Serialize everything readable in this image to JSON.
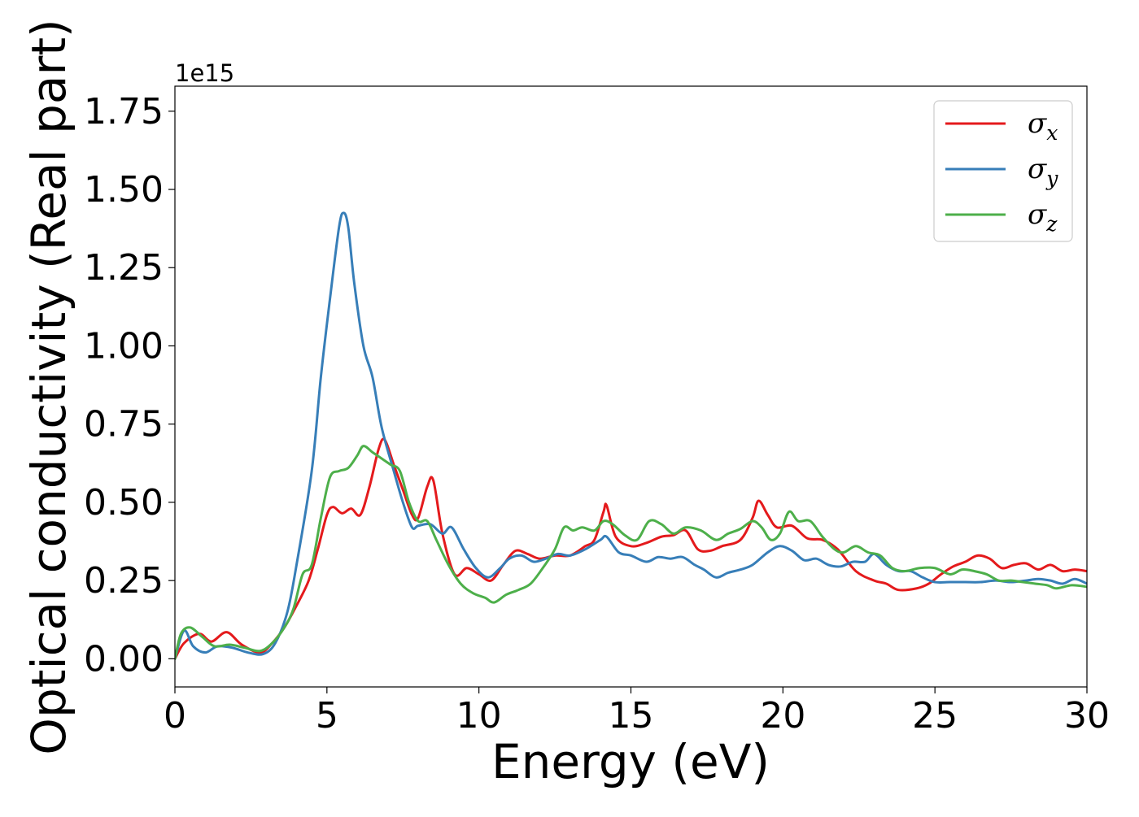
{
  "chart_data": {
    "type": "line",
    "xlabel": "Energy (eV)",
    "ylabel": "Optical conductivity (Real part)",
    "y_offset_text": "1e15",
    "y_scale_factor": 1000000000000000.0,
    "xlim": [
      0,
      30
    ],
    "ylim": [
      -0.09,
      1.83
    ],
    "x_ticks": [
      0,
      5,
      10,
      15,
      20,
      25,
      30
    ],
    "x_tick_labels": [
      "0",
      "5",
      "10",
      "15",
      "20",
      "25",
      "30"
    ],
    "y_ticks": [
      0.0,
      0.25,
      0.5,
      0.75,
      1.0,
      1.25,
      1.5,
      1.75
    ],
    "y_tick_labels": [
      "0.00",
      "0.25",
      "0.50",
      "0.75",
      "1.00",
      "1.25",
      "1.50",
      "1.75"
    ],
    "grid": false,
    "legend_position": "top-right",
    "series": [
      {
        "name": "σx",
        "symbol": "σ",
        "subscript": "x",
        "color": "#e41a1c",
        "points": [
          [
            0,
            0
          ],
          [
            0.3,
            0.05
          ],
          [
            0.8,
            0.08
          ],
          [
            1.2,
            0.055
          ],
          [
            1.7,
            0.085
          ],
          [
            2.2,
            0.045
          ],
          [
            2.8,
            0.02
          ],
          [
            3.2,
            0.05
          ],
          [
            3.6,
            0.1
          ],
          [
            4.0,
            0.17
          ],
          [
            4.4,
            0.25
          ],
          [
            4.7,
            0.35
          ],
          [
            5.0,
            0.46
          ],
          [
            5.2,
            0.485
          ],
          [
            5.5,
            0.465
          ],
          [
            5.8,
            0.48
          ],
          [
            6.1,
            0.46
          ],
          [
            6.4,
            0.55
          ],
          [
            6.7,
            0.67
          ],
          [
            6.9,
            0.7
          ],
          [
            7.2,
            0.62
          ],
          [
            7.5,
            0.54
          ],
          [
            7.8,
            0.46
          ],
          [
            8.0,
            0.45
          ],
          [
            8.3,
            0.55
          ],
          [
            8.5,
            0.57
          ],
          [
            8.8,
            0.4
          ],
          [
            9.2,
            0.27
          ],
          [
            9.6,
            0.29
          ],
          [
            10.0,
            0.27
          ],
          [
            10.4,
            0.25
          ],
          [
            10.8,
            0.3
          ],
          [
            11.2,
            0.345
          ],
          [
            11.6,
            0.335
          ],
          [
            12.0,
            0.32
          ],
          [
            12.5,
            0.33
          ],
          [
            13.0,
            0.33
          ],
          [
            13.5,
            0.36
          ],
          [
            13.8,
            0.38
          ],
          [
            14.1,
            0.47
          ],
          [
            14.2,
            0.49
          ],
          [
            14.5,
            0.39
          ],
          [
            15.0,
            0.36
          ],
          [
            15.5,
            0.37
          ],
          [
            16.0,
            0.39
          ],
          [
            16.4,
            0.395
          ],
          [
            16.8,
            0.41
          ],
          [
            17.2,
            0.35
          ],
          [
            17.6,
            0.345
          ],
          [
            18.0,
            0.36
          ],
          [
            18.6,
            0.38
          ],
          [
            19.0,
            0.45
          ],
          [
            19.2,
            0.505
          ],
          [
            19.5,
            0.46
          ],
          [
            19.8,
            0.42
          ],
          [
            20.3,
            0.425
          ],
          [
            20.8,
            0.385
          ],
          [
            21.3,
            0.38
          ],
          [
            21.8,
            0.35
          ],
          [
            22.4,
            0.28
          ],
          [
            23.0,
            0.25
          ],
          [
            23.4,
            0.24
          ],
          [
            23.8,
            0.22
          ],
          [
            24.4,
            0.225
          ],
          [
            24.8,
            0.24
          ],
          [
            25.2,
            0.27
          ],
          [
            25.6,
            0.295
          ],
          [
            26.0,
            0.31
          ],
          [
            26.4,
            0.33
          ],
          [
            26.8,
            0.32
          ],
          [
            27.2,
            0.29
          ],
          [
            27.6,
            0.3
          ],
          [
            28.0,
            0.305
          ],
          [
            28.4,
            0.285
          ],
          [
            28.8,
            0.3
          ],
          [
            29.2,
            0.28
          ],
          [
            29.6,
            0.285
          ],
          [
            30.0,
            0.28
          ]
        ]
      },
      {
        "name": "σy",
        "symbol": "σ",
        "subscript": "y",
        "color": "#377eb8",
        "points": [
          [
            0,
            0
          ],
          [
            0.3,
            0.09
          ],
          [
            0.6,
            0.04
          ],
          [
            1.0,
            0.02
          ],
          [
            1.4,
            0.04
          ],
          [
            1.9,
            0.035
          ],
          [
            2.4,
            0.02
          ],
          [
            2.9,
            0.015
          ],
          [
            3.3,
            0.05
          ],
          [
            3.7,
            0.15
          ],
          [
            4.0,
            0.3
          ],
          [
            4.5,
            0.6
          ],
          [
            4.8,
            0.9
          ],
          [
            5.1,
            1.15
          ],
          [
            5.4,
            1.38
          ],
          [
            5.55,
            1.425
          ],
          [
            5.7,
            1.38
          ],
          [
            5.9,
            1.2
          ],
          [
            6.2,
            1.0
          ],
          [
            6.5,
            0.9
          ],
          [
            6.8,
            0.74
          ],
          [
            7.2,
            0.6
          ],
          [
            7.5,
            0.5
          ],
          [
            7.8,
            0.42
          ],
          [
            8.0,
            0.425
          ],
          [
            8.4,
            0.43
          ],
          [
            8.8,
            0.4
          ],
          [
            9.1,
            0.42
          ],
          [
            9.5,
            0.35
          ],
          [
            9.9,
            0.29
          ],
          [
            10.3,
            0.26
          ],
          [
            10.7,
            0.29
          ],
          [
            11.0,
            0.32
          ],
          [
            11.4,
            0.33
          ],
          [
            11.8,
            0.31
          ],
          [
            12.2,
            0.32
          ],
          [
            12.6,
            0.335
          ],
          [
            13.0,
            0.33
          ],
          [
            13.5,
            0.35
          ],
          [
            14.0,
            0.38
          ],
          [
            14.2,
            0.39
          ],
          [
            14.6,
            0.34
          ],
          [
            15.0,
            0.33
          ],
          [
            15.5,
            0.31
          ],
          [
            15.9,
            0.325
          ],
          [
            16.3,
            0.32
          ],
          [
            16.7,
            0.325
          ],
          [
            17.1,
            0.3
          ],
          [
            17.4,
            0.285
          ],
          [
            17.8,
            0.26
          ],
          [
            18.2,
            0.275
          ],
          [
            18.6,
            0.285
          ],
          [
            19.0,
            0.3
          ],
          [
            19.5,
            0.34
          ],
          [
            19.9,
            0.36
          ],
          [
            20.3,
            0.345
          ],
          [
            20.7,
            0.315
          ],
          [
            21.1,
            0.32
          ],
          [
            21.5,
            0.3
          ],
          [
            21.9,
            0.295
          ],
          [
            22.3,
            0.31
          ],
          [
            22.7,
            0.31
          ],
          [
            23.0,
            0.335
          ],
          [
            23.4,
            0.3
          ],
          [
            23.8,
            0.28
          ],
          [
            24.2,
            0.28
          ],
          [
            24.6,
            0.26
          ],
          [
            25.0,
            0.245
          ],
          [
            25.5,
            0.245
          ],
          [
            26.0,
            0.245
          ],
          [
            26.5,
            0.245
          ],
          [
            27.0,
            0.25
          ],
          [
            27.5,
            0.245
          ],
          [
            28.0,
            0.25
          ],
          [
            28.4,
            0.255
          ],
          [
            28.8,
            0.25
          ],
          [
            29.2,
            0.24
          ],
          [
            29.6,
            0.255
          ],
          [
            30.0,
            0.24
          ]
        ]
      },
      {
        "name": "σz",
        "symbol": "σ",
        "subscript": "z",
        "color": "#4daf4a",
        "points": [
          [
            0,
            0
          ],
          [
            0.2,
            0.08
          ],
          [
            0.5,
            0.1
          ],
          [
            0.9,
            0.07
          ],
          [
            1.3,
            0.04
          ],
          [
            1.8,
            0.045
          ],
          [
            2.3,
            0.035
          ],
          [
            2.8,
            0.025
          ],
          [
            3.2,
            0.05
          ],
          [
            3.6,
            0.1
          ],
          [
            3.9,
            0.16
          ],
          [
            4.2,
            0.27
          ],
          [
            4.5,
            0.3
          ],
          [
            4.8,
            0.45
          ],
          [
            5.1,
            0.58
          ],
          [
            5.4,
            0.6
          ],
          [
            5.7,
            0.61
          ],
          [
            6.0,
            0.65
          ],
          [
            6.2,
            0.68
          ],
          [
            6.5,
            0.66
          ],
          [
            6.8,
            0.64
          ],
          [
            7.1,
            0.62
          ],
          [
            7.4,
            0.6
          ],
          [
            7.7,
            0.5
          ],
          [
            8.0,
            0.44
          ],
          [
            8.3,
            0.44
          ],
          [
            8.6,
            0.38
          ],
          [
            9.0,
            0.3
          ],
          [
            9.4,
            0.24
          ],
          [
            9.8,
            0.21
          ],
          [
            10.2,
            0.195
          ],
          [
            10.5,
            0.18
          ],
          [
            10.9,
            0.205
          ],
          [
            11.3,
            0.22
          ],
          [
            11.7,
            0.24
          ],
          [
            12.1,
            0.29
          ],
          [
            12.5,
            0.35
          ],
          [
            12.8,
            0.42
          ],
          [
            13.1,
            0.41
          ],
          [
            13.4,
            0.42
          ],
          [
            13.8,
            0.41
          ],
          [
            14.1,
            0.44
          ],
          [
            14.4,
            0.43
          ],
          [
            14.8,
            0.395
          ],
          [
            15.2,
            0.38
          ],
          [
            15.6,
            0.44
          ],
          [
            16.0,
            0.43
          ],
          [
            16.4,
            0.4
          ],
          [
            16.8,
            0.42
          ],
          [
            17.3,
            0.41
          ],
          [
            17.8,
            0.38
          ],
          [
            18.2,
            0.4
          ],
          [
            18.6,
            0.415
          ],
          [
            19.0,
            0.44
          ],
          [
            19.3,
            0.42
          ],
          [
            19.6,
            0.38
          ],
          [
            19.9,
            0.4
          ],
          [
            20.2,
            0.47
          ],
          [
            20.5,
            0.44
          ],
          [
            20.9,
            0.44
          ],
          [
            21.3,
            0.39
          ],
          [
            21.7,
            0.35
          ],
          [
            22.0,
            0.34
          ],
          [
            22.4,
            0.36
          ],
          [
            22.8,
            0.34
          ],
          [
            23.2,
            0.33
          ],
          [
            23.6,
            0.29
          ],
          [
            24.0,
            0.28
          ],
          [
            24.5,
            0.29
          ],
          [
            25.0,
            0.29
          ],
          [
            25.5,
            0.27
          ],
          [
            25.9,
            0.285
          ],
          [
            26.3,
            0.28
          ],
          [
            26.7,
            0.27
          ],
          [
            27.1,
            0.25
          ],
          [
            27.5,
            0.25
          ],
          [
            27.9,
            0.245
          ],
          [
            28.3,
            0.24
          ],
          [
            28.7,
            0.235
          ],
          [
            29.0,
            0.225
          ],
          [
            29.5,
            0.235
          ],
          [
            30.0,
            0.23
          ]
        ]
      }
    ]
  }
}
